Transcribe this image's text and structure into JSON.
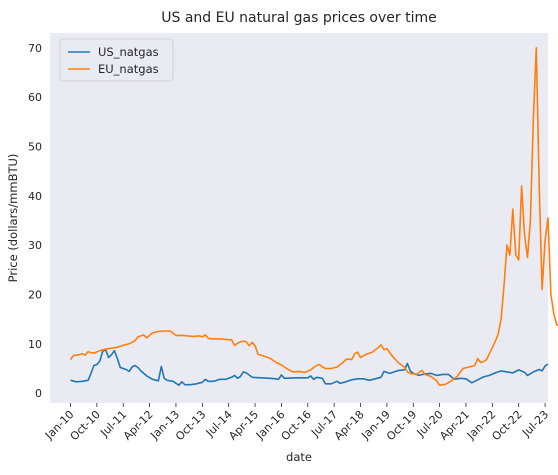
{
  "chart_data": {
    "type": "line",
    "title": "US and EU natural gas prices over time",
    "xlabel": "date",
    "ylabel": "Price (dollars/mmBTU)",
    "xticks": [
      "Jan-10",
      "Oct-10",
      "Jul-11",
      "Apr-12",
      "Jan-13",
      "Oct-13",
      "Jul-14",
      "Apr-15",
      "Jan-16",
      "Oct-16",
      "Jul-17",
      "Apr-18",
      "Jan-19",
      "Oct-19",
      "Jul-20",
      "Apr-21",
      "Jan-22",
      "Oct-22",
      "Jul-23"
    ],
    "yticks": [
      0,
      10,
      20,
      30,
      40,
      50,
      60,
      70
    ],
    "xlim": [
      "2009-06",
      "2023-08"
    ],
    "ylim": [
      -2,
      73
    ],
    "grid": false,
    "legend_position": "top-left",
    "colors": {
      "plot_bg": "#eaeaf2",
      "US_natgas": "#1f77b4",
      "EU_natgas": "#ff7f0e"
    },
    "series": [
      {
        "name": "US_natgas",
        "color": "#1f77b4",
        "points": [
          [
            "2010-01",
            2.6
          ],
          [
            "2010-03",
            2.3
          ],
          [
            "2010-05",
            2.4
          ],
          [
            "2010-07",
            2.6
          ],
          [
            "2010-08",
            4.0
          ],
          [
            "2010-09",
            5.6
          ],
          [
            "2010-10",
            5.8
          ],
          [
            "2010-11",
            6.5
          ],
          [
            "2010-12",
            8.5
          ],
          [
            "2011-01",
            8.8
          ],
          [
            "2011-02",
            7.2
          ],
          [
            "2011-03",
            7.8
          ],
          [
            "2011-04",
            8.6
          ],
          [
            "2011-05",
            7.0
          ],
          [
            "2011-06",
            5.2
          ],
          [
            "2011-07",
            5.0
          ],
          [
            "2011-08",
            4.8
          ],
          [
            "2011-09",
            4.4
          ],
          [
            "2011-10",
            5.3
          ],
          [
            "2011-11",
            5.6
          ],
          [
            "2011-12",
            5.2
          ],
          [
            "2012-01",
            4.5
          ],
          [
            "2012-03",
            3.5
          ],
          [
            "2012-05",
            2.8
          ],
          [
            "2012-07",
            2.5
          ],
          [
            "2012-08",
            5.4
          ],
          [
            "2012-09",
            3.0
          ],
          [
            "2012-10",
            2.6
          ],
          [
            "2012-12",
            2.4
          ],
          [
            "2013-02",
            1.6
          ],
          [
            "2013-03",
            2.3
          ],
          [
            "2013-04",
            1.7
          ],
          [
            "2013-06",
            1.7
          ],
          [
            "2013-08",
            1.9
          ],
          [
            "2013-10",
            2.2
          ],
          [
            "2013-11",
            2.8
          ],
          [
            "2013-12",
            2.4
          ],
          [
            "2014-02",
            2.4
          ],
          [
            "2014-04",
            2.8
          ],
          [
            "2014-06",
            2.8
          ],
          [
            "2014-08",
            3.2
          ],
          [
            "2014-09",
            3.6
          ],
          [
            "2014-10",
            3.0
          ],
          [
            "2014-11",
            3.4
          ],
          [
            "2014-12",
            4.3
          ],
          [
            "2015-01",
            4.1
          ],
          [
            "2015-03",
            3.2
          ],
          [
            "2015-06",
            3.1
          ],
          [
            "2015-09",
            3.0
          ],
          [
            "2015-11",
            2.9
          ],
          [
            "2015-12",
            2.8
          ],
          [
            "2016-01",
            3.7
          ],
          [
            "2016-02",
            3.0
          ],
          [
            "2016-06",
            3.1
          ],
          [
            "2016-10",
            3.1
          ],
          [
            "2016-11",
            3.5
          ],
          [
            "2016-12",
            2.8
          ],
          [
            "2017-01",
            3.2
          ],
          [
            "2017-03",
            3.0
          ],
          [
            "2017-04",
            1.9
          ],
          [
            "2017-06",
            1.9
          ],
          [
            "2017-08",
            2.4
          ],
          [
            "2017-09",
            2.0
          ],
          [
            "2017-11",
            2.3
          ],
          [
            "2018-01",
            2.7
          ],
          [
            "2018-03",
            2.9
          ],
          [
            "2018-05",
            2.9
          ],
          [
            "2018-07",
            2.6
          ],
          [
            "2018-09",
            2.9
          ],
          [
            "2018-11",
            3.2
          ],
          [
            "2018-12",
            4.4
          ],
          [
            "2019-02",
            4.0
          ],
          [
            "2019-05",
            4.6
          ],
          [
            "2019-07",
            4.7
          ],
          [
            "2019-08",
            6.0
          ],
          [
            "2019-09",
            4.5
          ],
          [
            "2019-10",
            4.0
          ],
          [
            "2019-12",
            3.6
          ],
          [
            "2020-02",
            3.9
          ],
          [
            "2020-04",
            4.0
          ],
          [
            "2020-06",
            3.6
          ],
          [
            "2020-08",
            3.8
          ],
          [
            "2020-10",
            3.8
          ],
          [
            "2020-12",
            2.8
          ],
          [
            "2021-02",
            3.0
          ],
          [
            "2021-04",
            2.9
          ],
          [
            "2021-06",
            2.1
          ],
          [
            "2021-08",
            2.7
          ],
          [
            "2021-10",
            3.3
          ],
          [
            "2021-12",
            3.6
          ],
          [
            "2022-02",
            4.1
          ],
          [
            "2022-04",
            4.5
          ],
          [
            "2022-06",
            4.3
          ],
          [
            "2022-08",
            4.1
          ],
          [
            "2022-10",
            4.7
          ],
          [
            "2022-12",
            4.2
          ],
          [
            "2023-01",
            3.6
          ],
          [
            "2023-03",
            4.3
          ],
          [
            "2023-05",
            4.8
          ],
          [
            "2023-06",
            4.5
          ],
          [
            "2023-07",
            5.5
          ],
          [
            "2023-08",
            5.9
          ]
        ]
      },
      {
        "name": "EU_natgas",
        "color": "#ff7f0e",
        "points": [
          [
            "2010-01",
            6.8
          ],
          [
            "2010-02",
            7.6
          ],
          [
            "2010-04",
            7.8
          ],
          [
            "2010-05",
            8.0
          ],
          [
            "2010-06",
            7.7
          ],
          [
            "2010-07",
            8.4
          ],
          [
            "2010-08",
            8.2
          ],
          [
            "2010-09",
            8.1
          ],
          [
            "2010-11",
            8.6
          ],
          [
            "2011-01",
            8.9
          ],
          [
            "2011-03",
            9.1
          ],
          [
            "2011-05",
            9.3
          ],
          [
            "2011-07",
            9.7
          ],
          [
            "2011-09",
            10.0
          ],
          [
            "2011-10",
            10.3
          ],
          [
            "2011-11",
            10.6
          ],
          [
            "2011-12",
            11.4
          ],
          [
            "2012-02",
            11.8
          ],
          [
            "2012-03",
            11.2
          ],
          [
            "2012-05",
            12.2
          ],
          [
            "2012-07",
            12.5
          ],
          [
            "2012-09",
            12.6
          ],
          [
            "2012-11",
            12.6
          ],
          [
            "2013-01",
            11.7
          ],
          [
            "2013-03",
            11.7
          ],
          [
            "2013-05",
            11.6
          ],
          [
            "2013-07",
            11.5
          ],
          [
            "2013-09",
            11.6
          ],
          [
            "2013-10",
            11.4
          ],
          [
            "2013-11",
            11.8
          ],
          [
            "2013-12",
            11.1
          ],
          [
            "2014-02",
            11.0
          ],
          [
            "2014-04",
            11.0
          ],
          [
            "2014-06",
            10.9
          ],
          [
            "2014-08",
            10.8
          ],
          [
            "2014-09",
            9.7
          ],
          [
            "2014-10",
            10.1
          ],
          [
            "2014-11",
            10.4
          ],
          [
            "2014-12",
            10.5
          ],
          [
            "2015-01",
            10.4
          ],
          [
            "2015-02",
            9.6
          ],
          [
            "2015-03",
            10.3
          ],
          [
            "2015-04",
            9.6
          ],
          [
            "2015-05",
            7.9
          ],
          [
            "2015-07",
            7.5
          ],
          [
            "2015-09",
            7.1
          ],
          [
            "2015-11",
            6.3
          ],
          [
            "2016-01",
            5.7
          ],
          [
            "2016-03",
            4.9
          ],
          [
            "2016-05",
            4.3
          ],
          [
            "2016-07",
            4.4
          ],
          [
            "2016-09",
            4.2
          ],
          [
            "2016-11",
            4.7
          ],
          [
            "2016-12",
            5.2
          ],
          [
            "2017-01",
            5.6
          ],
          [
            "2017-02",
            5.8
          ],
          [
            "2017-03",
            5.3
          ],
          [
            "2017-04",
            5.0
          ],
          [
            "2017-06",
            5.0
          ],
          [
            "2017-08",
            5.3
          ],
          [
            "2017-10",
            6.2
          ],
          [
            "2017-11",
            6.8
          ],
          [
            "2017-12",
            6.9
          ],
          [
            "2018-01",
            6.8
          ],
          [
            "2018-02",
            8.0
          ],
          [
            "2018-03",
            8.3
          ],
          [
            "2018-04",
            7.2
          ],
          [
            "2018-06",
            7.9
          ],
          [
            "2018-08",
            8.3
          ],
          [
            "2018-10",
            9.2
          ],
          [
            "2018-11",
            9.8
          ],
          [
            "2018-12",
            8.8
          ],
          [
            "2019-01",
            9.0
          ],
          [
            "2019-03",
            7.4
          ],
          [
            "2019-05",
            6.1
          ],
          [
            "2019-07",
            5.3
          ],
          [
            "2019-08",
            4.3
          ],
          [
            "2019-09",
            4.0
          ],
          [
            "2019-11",
            3.8
          ],
          [
            "2020-01",
            4.6
          ],
          [
            "2020-02",
            3.8
          ],
          [
            "2020-04",
            3.4
          ],
          [
            "2020-06",
            2.5
          ],
          [
            "2020-07",
            1.6
          ],
          [
            "2020-09",
            1.8
          ],
          [
            "2020-11",
            2.5
          ],
          [
            "2021-01",
            3.4
          ],
          [
            "2021-03",
            5.0
          ],
          [
            "2021-05",
            5.3
          ],
          [
            "2021-07",
            5.6
          ],
          [
            "2021-08",
            7.0
          ],
          [
            "2021-09",
            6.2
          ],
          [
            "2021-10",
            6.4
          ],
          [
            "2021-11",
            6.8
          ],
          [
            "2021-12",
            8.0
          ],
          [
            "2022-02",
            10.5
          ],
          [
            "2022-03",
            12.0
          ],
          [
            "2022-04",
            15.0
          ],
          [
            "2022-05",
            22.0
          ],
          [
            "2022-06",
            30.0
          ],
          [
            "2022-07",
            28.0
          ],
          [
            "2022-08",
            37.3
          ],
          [
            "2022-09",
            28.0
          ],
          [
            "2022-10",
            27.0
          ],
          [
            "2022-11",
            42.0
          ],
          [
            "2022-12",
            32.0
          ],
          [
            "2023-01",
            27.5
          ],
          [
            "2023-02",
            35.0
          ],
          [
            "2023-03",
            56.0
          ],
          [
            "2023-04",
            70.0
          ],
          [
            "2023-05",
            42.0
          ],
          [
            "2023-06",
            21.0
          ],
          [
            "2023-07",
            31.0
          ],
          [
            "2023-08",
            35.5
          ],
          [
            "2023-09",
            20.0
          ],
          [
            "2023-10",
            16.0
          ],
          [
            "2023-11",
            13.8
          ],
          [
            "2023-12",
            13.8
          ],
          [
            "2024-01",
            10.2
          ],
          [
            "2024-02",
            10.3
          ]
        ]
      }
    ]
  }
}
